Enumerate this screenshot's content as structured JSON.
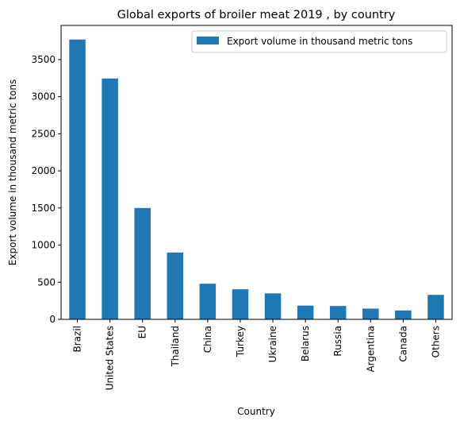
{
  "chart_data": {
    "type": "bar",
    "title": "Global exports of broiler meat 2019 , by country",
    "xlabel": "Country",
    "ylabel": "Export volume in thousand metric tons",
    "categories": [
      "Brazil",
      "United States",
      "EU",
      "Thailand",
      "China",
      "Turkey",
      "Ukraine",
      "Belarus",
      "Russia",
      "Argentina",
      "Canada",
      "Others"
    ],
    "series": [
      {
        "name": "Export volume in thousand metric tons",
        "color": "#1f77b4",
        "values": [
          3770,
          3245,
          1500,
          900,
          480,
          405,
          350,
          185,
          180,
          145,
          120,
          330
        ]
      }
    ],
    "yticks": [
      0,
      500,
      1000,
      1500,
      2000,
      2500,
      3000,
      3500
    ],
    "ylim": [
      0,
      3960
    ],
    "grid": false,
    "legend_position": "top-right"
  }
}
